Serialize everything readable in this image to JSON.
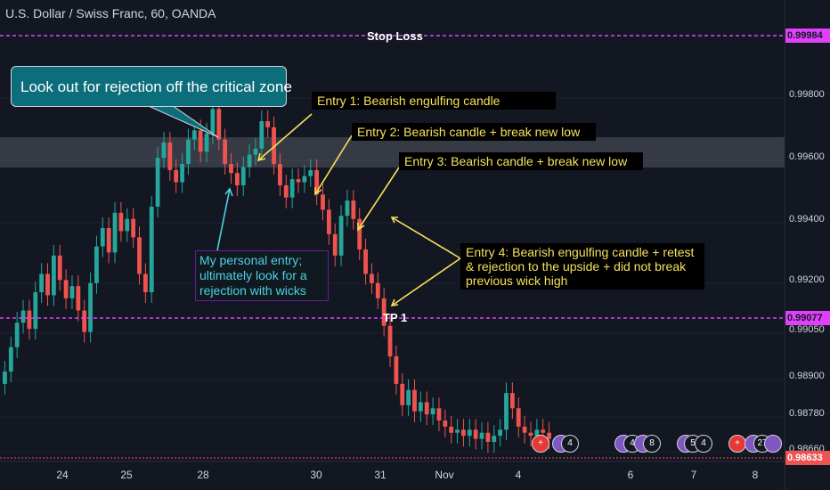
{
  "title": "U.S. Dollar / Swiss Franc, 60, OANDA",
  "chart_data": {
    "type": "candlestick",
    "symbol": "USDCHF",
    "timeframe": "60",
    "source": "OANDA",
    "x_tick_labels": [
      "24",
      "25",
      "28",
      "30",
      "31",
      "Nov",
      "4",
      "6",
      "7",
      "8"
    ],
    "y_tick_labels": [
      "0.99800",
      "0.99600",
      "0.99400",
      "0.99200",
      "0.99050",
      "0.98900",
      "0.98780",
      "0.98660"
    ],
    "levels": {
      "stop_loss": {
        "label": "Stop Loss",
        "price": "0.99984"
      },
      "tp1": {
        "label": "TP 1",
        "price": "0.99077"
      },
      "current": {
        "price": "0.98633"
      }
    },
    "resistance_zone": [
      0.9957,
      0.9967
    ],
    "close_series": [
      0.988,
      0.9888,
      0.9896,
      0.99,
      0.9894,
      0.9906,
      0.9912,
      0.9905,
      0.9918,
      0.991,
      0.9904,
      0.9908,
      0.99,
      0.9893,
      0.9909,
      0.9921,
      0.9927,
      0.9919,
      0.9932,
      0.9926,
      0.993,
      0.9924,
      0.9912,
      0.9906,
      0.9934,
      0.995,
      0.9955,
      0.9946,
      0.9942,
      0.9948,
      0.9956,
      0.9959,
      0.9952,
      0.9958,
      0.9966,
      0.9956,
      0.9948,
      0.9945,
      0.9941,
      0.9947,
      0.9951,
      0.9953,
      0.9962,
      0.996,
      0.9948,
      0.9941,
      0.9937,
      0.9943,
      0.9942,
      0.9944,
      0.9946,
      0.9938,
      0.9933,
      0.9925,
      0.9918,
      0.9931,
      0.9936,
      0.993,
      0.992,
      0.9912,
      0.9909,
      0.9904,
      0.9895,
      0.9885,
      0.9876,
      0.9869,
      0.9874,
      0.9867,
      0.987,
      0.9866,
      0.9868,
      0.9864,
      0.9862,
      0.986,
      0.9861,
      0.9859,
      0.9861,
      0.9858,
      0.986,
      0.9857,
      0.9859,
      0.9861,
      0.9873,
      0.9868,
      0.9862,
      0.986,
      0.9859,
      0.9861,
      0.986,
      0.9858
    ]
  },
  "annotations": {
    "critical_zone_callout": "Look out for rejection off the critical zone",
    "entry1": "Entry 1: Bearish engulfing candle",
    "entry2": "Entry 2: Bearish candle + break new low",
    "entry3": "Entry 3: Bearish candle + break new low",
    "entry4_line1": "Entry 4: Bearish engulfing candle + retest",
    "entry4_line2": "& rejection to the upside + did not break",
    "entry4_line3": "previous wick high",
    "personal_line1": "My personal entry;",
    "personal_line2": "ultimately look for a",
    "personal_line3": "rejection with wicks"
  },
  "events": [
    {
      "icon": "swiss-flag-icon",
      "text": "+"
    },
    {
      "icon": "us-flag-icon",
      "text": "4"
    },
    {
      "icon": "us-flag-icon",
      "text": ""
    },
    {
      "icon": "us-flag-icon",
      "text": "4"
    },
    {
      "icon": "number-badge",
      "text": "8"
    },
    {
      "icon": "us-flag-icon",
      "text": ""
    },
    {
      "icon": "number-badge",
      "text": "5"
    },
    {
      "icon": "number-badge",
      "text": "4"
    },
    {
      "icon": "swiss-flag-icon",
      "text": "+"
    },
    {
      "icon": "us-flag-icon",
      "text": ""
    },
    {
      "icon": "number-badge",
      "text": "27"
    },
    {
      "icon": "us-flag-icon",
      "text": ""
    }
  ],
  "colors": {
    "background": "#131722",
    "bull": "#26a69a",
    "bear": "#ef5350",
    "level": "#e040fb",
    "zone": "#5d6068",
    "note_text": "#f5e15a",
    "callout_bg": "#0b6e7a"
  }
}
